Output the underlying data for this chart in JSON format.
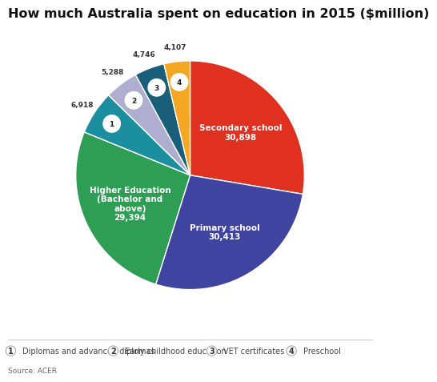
{
  "title": "How much Australia spent on education in 2015 ($million)",
  "title_fontsize": 11.5,
  "slices": [
    {
      "label": "Secondary school",
      "value": 30898,
      "color": "#e03020",
      "text_color": "white",
      "number": null
    },
    {
      "label": "Primary school",
      "value": 30413,
      "color": "#3f44a0",
      "text_color": "white",
      "number": null
    },
    {
      "label": "Higher Education\n(Bachelor and\nabove)",
      "value": 29394,
      "color": "#2e9e55",
      "text_color": "white",
      "number": null
    },
    {
      "label": "Diplomas and\nadvanced diplomas",
      "value": 6918,
      "color": "#1b8fa0",
      "text_color": "white",
      "number": 1
    },
    {
      "label": "Early childhood\neducation",
      "value": 5288,
      "color": "#b0aed0",
      "text_color": "white",
      "number": 2
    },
    {
      "label": "VET certificates",
      "value": 4746,
      "color": "#1a5f7a",
      "text_color": "white",
      "number": 3
    },
    {
      "label": "Preschool",
      "value": 4107,
      "color": "#f5a623",
      "text_color": "white",
      "number": 4
    }
  ],
  "legend_items": [
    {
      "number": 1,
      "label": "Diplomas and advanced diplomas"
    },
    {
      "number": 2,
      "label": "Early childhood education"
    },
    {
      "number": 3,
      "label": "VET certificates"
    },
    {
      "number": 4,
      "label": "Preschool"
    }
  ],
  "source_text": "Source: ACER",
  "background_color": "#ffffff"
}
